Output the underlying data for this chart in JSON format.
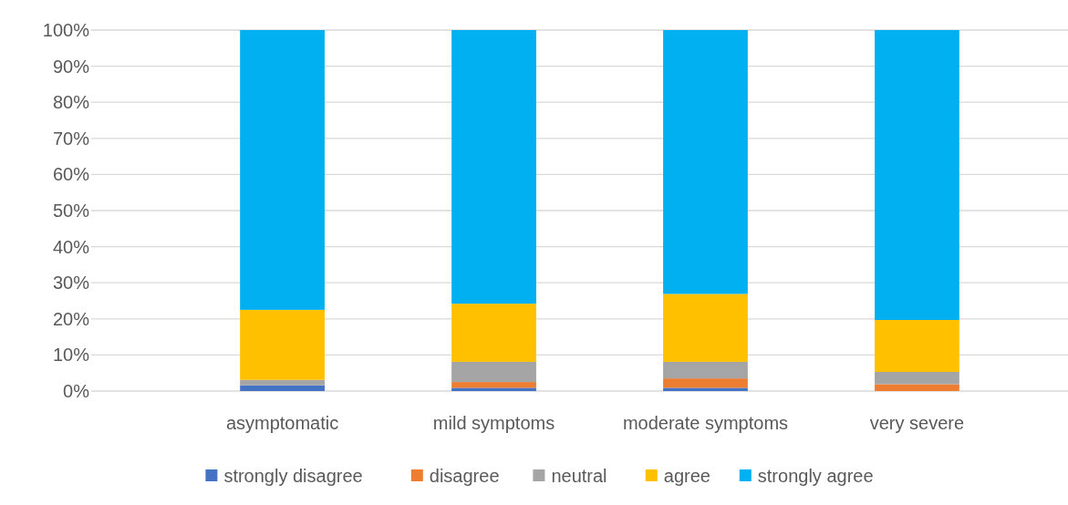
{
  "chart_data": {
    "type": "bar",
    "stacked": true,
    "categories": [
      "asymptomatic",
      "mild symptoms",
      "moderate symptoms",
      "very severe"
    ],
    "series": [
      {
        "name": "strongly disagree",
        "color": "#4472c4",
        "values": [
          1.6,
          0.9,
          0.9,
          0
        ]
      },
      {
        "name": "disagree",
        "color": "#ed7d31",
        "values": [
          0,
          1.6,
          2.6,
          1.9
        ]
      },
      {
        "name": "neutral",
        "color": "#a5a5a5",
        "values": [
          1.5,
          5.6,
          4.6,
          3.4
        ]
      },
      {
        "name": "agree",
        "color": "#ffc000",
        "values": [
          19.4,
          16.1,
          18.8,
          14.4
        ]
      },
      {
        "name": "strongly agree",
        "color": "#00b0f0",
        "values": [
          77.5,
          75.8,
          73.1,
          80.3
        ]
      }
    ],
    "ylim": [
      0,
      100
    ],
    "yticks": [
      {
        "value": 0,
        "label": "0%"
      },
      {
        "value": 10,
        "label": "10%"
      },
      {
        "value": 20,
        "label": "20%"
      },
      {
        "value": 30,
        "label": "30%"
      },
      {
        "value": 40,
        "label": "40%"
      },
      {
        "value": 50,
        "label": "50%"
      },
      {
        "value": 60,
        "label": "60%"
      },
      {
        "value": 70,
        "label": "70%"
      },
      {
        "value": 80,
        "label": "80%"
      },
      {
        "value": 90,
        "label": "90%"
      },
      {
        "value": 100,
        "label": "100%"
      }
    ],
    "grid": "y",
    "legend": "bottom"
  }
}
